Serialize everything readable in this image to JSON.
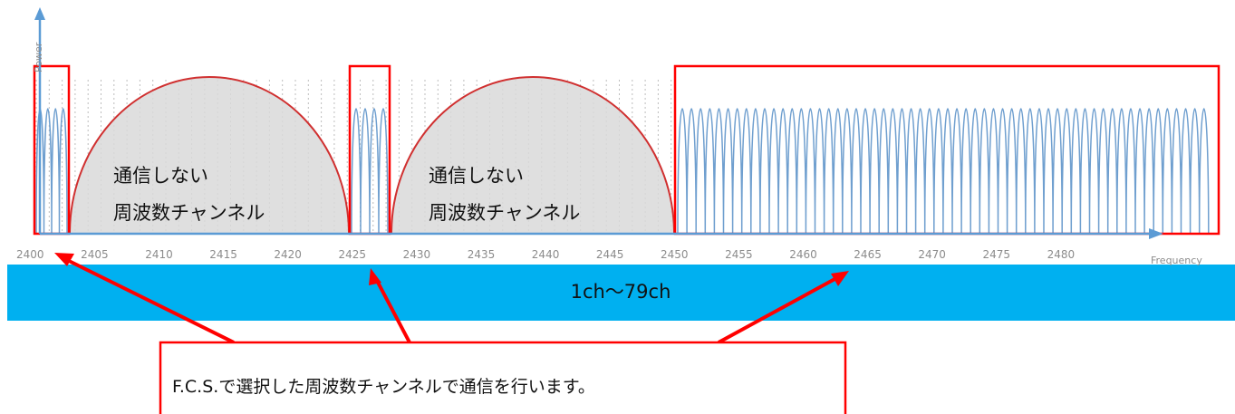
{
  "axes": {
    "y_title": "Power",
    "x_title": "Frequency",
    "ticks": [
      "2400",
      "2405",
      "2410",
      "2415",
      "2420",
      "2425",
      "2430",
      "2435",
      "2440",
      "2445",
      "2450",
      "2455",
      "2460",
      "2465",
      "2470",
      "2475",
      "2480"
    ]
  },
  "excluded_zones": [
    {
      "line1": "通信しない",
      "line2": "周波数チャンネル"
    },
    {
      "line1": "通信しない",
      "line2": "周波数チャンネル"
    }
  ],
  "channel_band": {
    "label": "1ch〜79ch"
  },
  "callout": {
    "text": "F.C.S.で選択した周波数チャンネルで通信を行います。"
  },
  "colors": {
    "band": "#00b0f0",
    "highlight": "#ff0000",
    "channel_curve": "#6f9fcf",
    "zone_fill": "#d9d9d9",
    "zone_edge": "#d03030",
    "axis": "#5b9bd5"
  }
}
